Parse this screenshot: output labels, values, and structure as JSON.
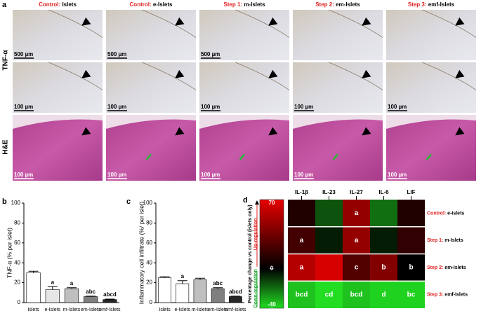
{
  "panel_a": {
    "label": "a",
    "row_labels": [
      "TNF-α",
      "H&E"
    ],
    "columns": [
      {
        "prefix": "Control:",
        "name": "Islets",
        "scales": [
          "500 µm",
          "100 µm",
          "100 µm"
        ]
      },
      {
        "prefix": "Control:",
        "name": "e-Islets",
        "scales": [
          "500 µm",
          "100 µm",
          "100 µm"
        ]
      },
      {
        "prefix": "Step 1:",
        "name": "m-Islets",
        "scales": [
          "500 µm",
          "100 µm",
          "100 µm"
        ]
      },
      {
        "prefix": "Step 2:",
        "name": "em-Islets",
        "scales": [
          null,
          "100 µm",
          "100 µm"
        ]
      },
      {
        "prefix": "Step 3:",
        "name": "emf-Islets",
        "scales": [
          null,
          "100 µm",
          "100 µm"
        ]
      }
    ]
  },
  "chart_data": [
    {
      "type": "bar",
      "panel": "b",
      "ylabel": "TNF-α (% per islet)",
      "categories": [
        "Islets",
        "e-Islets",
        "m-Islets",
        "em-Islets",
        "emf-Islets"
      ],
      "values": [
        30,
        13,
        14,
        6,
        3
      ],
      "errors": [
        1.5,
        3,
        1,
        0.5,
        0.5
      ],
      "letters": [
        null,
        "a",
        "a",
        "abc",
        "abcd"
      ],
      "colors": [
        "#ffffff",
        "#e6e6e6",
        "#bfbfbf",
        "#7f7f7f",
        "#262626"
      ],
      "ylim": [
        0,
        100
      ],
      "yticks": [
        0,
        20,
        40,
        60,
        80,
        100
      ]
    },
    {
      "type": "bar",
      "panel": "c",
      "ylabel": "Inflammatory cell infiltrate (%/ per islet)",
      "categories": [
        "Islets",
        "e-Islets",
        "m-Islets",
        "em-Islets",
        "emf-Islets"
      ],
      "values": [
        25,
        19,
        23,
        14,
        6
      ],
      "errors": [
        1,
        3,
        1.5,
        1,
        0.5
      ],
      "letters": [
        null,
        "a",
        null,
        "abc",
        "abcd"
      ],
      "colors": [
        "#ffffff",
        "#ffffff",
        "#bfbfbf",
        "#7f7f7f",
        "#262626"
      ],
      "ylim": [
        0,
        100
      ],
      "yticks": [
        0,
        20,
        40,
        60,
        80,
        100
      ]
    },
    {
      "type": "heatmap",
      "panel": "d",
      "columns": [
        "IL-1β",
        "IL-23",
        "IL-27",
        "IL-6",
        "LIF"
      ],
      "rows": [
        {
          "prefix": "Control:",
          "name": "e-Islets"
        },
        {
          "prefix": "Step 1:",
          "name": "m-Islets"
        },
        {
          "prefix": "Step 2:",
          "name": "em-Islets"
        },
        {
          "prefix": "Step 3:",
          "name": "emf-Islets"
        }
      ],
      "values": [
        [
          10,
          -15,
          45,
          -20,
          10
        ],
        [
          20,
          -5,
          45,
          -5,
          15
        ],
        [
          55,
          65,
          25,
          40,
          0
        ],
        [
          -35,
          -40,
          -35,
          -38,
          -38
        ]
      ],
      "letters": [
        [
          null,
          null,
          "a",
          null,
          null
        ],
        [
          "a",
          null,
          "a",
          null,
          null
        ],
        [
          "a",
          null,
          "c",
          "b",
          "b"
        ],
        [
          "bcd",
          "cd",
          "bcd",
          "d",
          "bc"
        ]
      ],
      "clim": [
        -40,
        70
      ],
      "cticks": [
        70,
        0,
        -40
      ],
      "colors": {
        "high": "#e60000",
        "mid": "#000000",
        "low": "#22dd22"
      },
      "colorbar_label": "Percentage change vs control (islets only)",
      "up_label": "Up-regulation",
      "down_label": "Down-regulation"
    }
  ]
}
